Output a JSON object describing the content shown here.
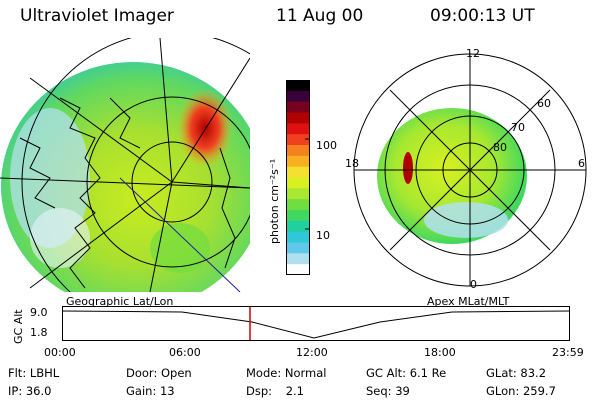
{
  "header": {
    "instrument": "Ultraviolet Imager",
    "date": "11 Aug 00",
    "time": "09:00:13 UT"
  },
  "colorbar": {
    "unit_label": "photon cm⁻²s⁻¹",
    "ticks": [
      "100",
      "10"
    ],
    "colors": [
      "#000000",
      "#3a003a",
      "#7a0020",
      "#b00000",
      "#e01010",
      "#f04020",
      "#f58020",
      "#f8b020",
      "#f5e030",
      "#d8f020",
      "#a8e830",
      "#70dd40",
      "#40d860",
      "#20d0a0",
      "#30c8d8",
      "#60c8e8",
      "#b0e0f0",
      "#ffffff"
    ]
  },
  "left_panel": {
    "caption": "Geographic Lat/Lon"
  },
  "right_panel": {
    "caption": "Apex MLat/MLT",
    "mlt_labels": {
      "top": "12",
      "left": "18",
      "right": "6",
      "bottom": "0"
    },
    "lat_labels": [
      "60",
      "70",
      "80"
    ]
  },
  "timeline": {
    "axis_label": "GC Alt",
    "y_ticks": [
      "9.0",
      "1.8"
    ],
    "x_ticks": [
      "00:00",
      "06:00",
      "12:00",
      "18:00",
      "23:59"
    ],
    "marker_color": "#cc0000"
  },
  "info": {
    "flt_label": "Flt:",
    "flt_value": "LBHL",
    "ip_label": "IP:",
    "ip_value": "36.0",
    "door_label": "Door:",
    "door_value": "Open",
    "gain_label": "Gain:",
    "gain_value": "13",
    "mode_label": "Mode:",
    "mode_value": "Normal",
    "dsp_label": "Dsp:",
    "dsp_value": "2.1",
    "gcalt_label": "GC Alt:",
    "gcalt_value": "6.1 Re",
    "seq_label": "Seq:",
    "seq_value": "39",
    "glat_label": "GLat:",
    "glat_value": "83.2",
    "glon_label": "GLon:",
    "glon_value": "259.7"
  }
}
